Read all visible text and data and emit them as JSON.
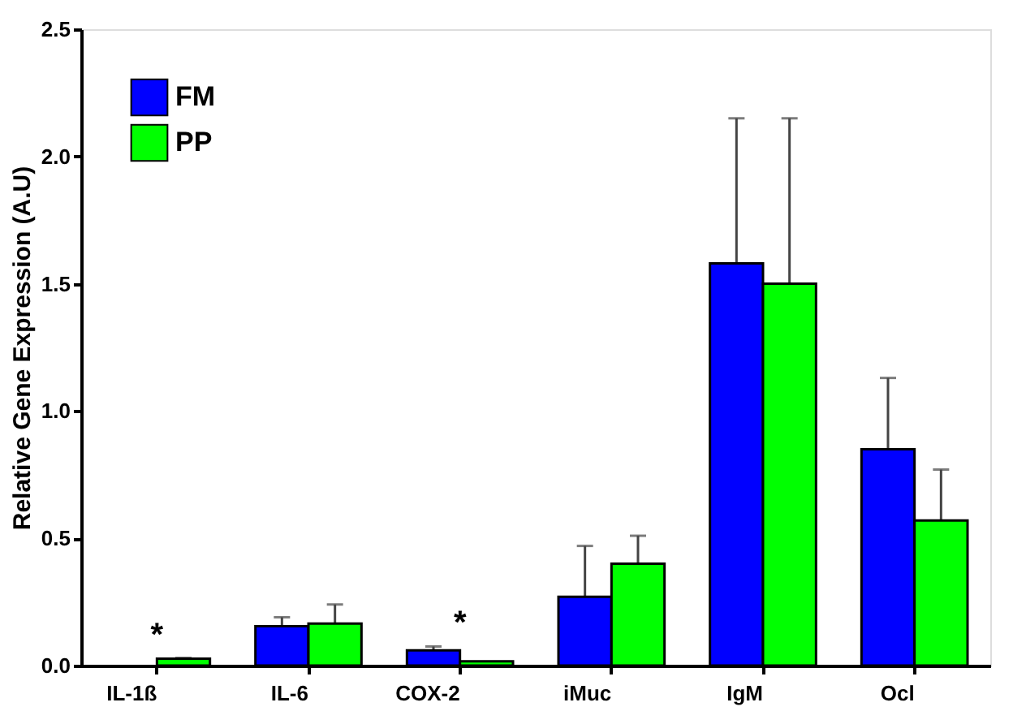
{
  "chart_data": {
    "type": "bar",
    "ylabel": "Relative Gene Expression (A.U)",
    "categories": [
      "IL-1ß",
      "IL-6",
      "COX-2",
      "iMuc",
      "IgM",
      "Ocl"
    ],
    "series": [
      {
        "name": "FM",
        "color": "#0000ff",
        "values": [
          null,
          0.155,
          0.06,
          0.27,
          1.58,
          0.85
        ],
        "errors": [
          null,
          [
            0.155,
            0.19
          ],
          [
            0.06,
            0.075
          ],
          [
            0.27,
            0.47
          ],
          [
            1.58,
            2.15
          ],
          [
            0.85,
            1.13
          ]
        ]
      },
      {
        "name": "PP",
        "color": "#00ff00",
        "values": [
          0.027,
          0.165,
          0.017,
          0.4,
          1.5,
          0.57
        ],
        "errors": [
          [
            0.027,
            0.03
          ],
          [
            0.165,
            0.24
          ],
          null,
          [
            0.4,
            0.51
          ],
          [
            1.5,
            2.15
          ],
          [
            0.57,
            0.77
          ]
        ]
      }
    ],
    "ylim": [
      0,
      2.5
    ],
    "yticks": [
      {
        "value": 0,
        "label": "0.0"
      },
      {
        "value": 0.5,
        "label": "0.5"
      },
      {
        "value": 1,
        "label": "1.0"
      },
      {
        "value": 1.5,
        "label": "1.5"
      },
      {
        "value": 2,
        "label": "2.0"
      },
      {
        "value": 2.5,
        "label": "2.5"
      }
    ],
    "annotations": [
      "*",
      "*"
    ],
    "grid": false,
    "legend": "top left"
  }
}
